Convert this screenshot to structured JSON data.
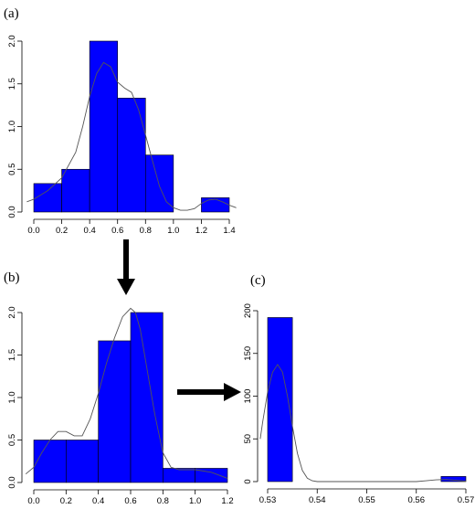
{
  "colors": {
    "bar": "#0000ff",
    "density": "#555555",
    "arrow": "#000000"
  },
  "chart_data": [
    {
      "id": "a",
      "type": "bar",
      "panel_label": "(a)",
      "bin_edges": [
        0.0,
        0.2,
        0.4,
        0.6,
        0.8,
        1.0,
        1.2,
        1.4
      ],
      "values": [
        0.333,
        0.5,
        2.0,
        1.333,
        0.667,
        0.0,
        0.167
      ],
      "xlim": [
        0.0,
        1.4
      ],
      "ylim": [
        0,
        2.0
      ],
      "xticks": [
        "0.0",
        "0.2",
        "0.4",
        "0.6",
        "0.8",
        "1.0",
        "1.2",
        "1.4"
      ],
      "yticks": [
        "0.0",
        "0.5",
        "1.0",
        "1.5",
        "2.0"
      ],
      "density": {
        "x": [
          -0.05,
          0.0,
          0.1,
          0.2,
          0.3,
          0.35,
          0.4,
          0.45,
          0.5,
          0.55,
          0.6,
          0.65,
          0.7,
          0.75,
          0.8,
          0.85,
          0.9,
          0.95,
          1.0,
          1.05,
          1.1,
          1.15,
          1.2,
          1.25,
          1.3,
          1.35,
          1.4,
          1.45
        ],
        "y": [
          0.12,
          0.15,
          0.25,
          0.4,
          0.7,
          1.0,
          1.35,
          1.62,
          1.75,
          1.7,
          1.52,
          1.45,
          1.4,
          1.2,
          0.9,
          0.6,
          0.3,
          0.12,
          0.05,
          0.02,
          0.02,
          0.04,
          0.1,
          0.14,
          0.15,
          0.12,
          0.08,
          0.05
        ]
      }
    },
    {
      "id": "b",
      "type": "bar",
      "panel_label": "(b)",
      "bin_edges": [
        0.0,
        0.2,
        0.4,
        0.6,
        0.8,
        1.0,
        1.2
      ],
      "values": [
        0.5,
        0.5,
        1.667,
        2.0,
        0.167,
        0.167
      ],
      "xlim": [
        0.0,
        1.2
      ],
      "ylim": [
        0,
        2.0
      ],
      "xticks": [
        "0.0",
        "0.2",
        "0.4",
        "0.6",
        "0.8",
        "1.0",
        "1.2"
      ],
      "yticks": [
        "0.0",
        "0.5",
        "1.0",
        "1.5",
        "2.0"
      ],
      "density": {
        "x": [
          -0.05,
          0.0,
          0.05,
          0.1,
          0.15,
          0.2,
          0.25,
          0.3,
          0.35,
          0.4,
          0.45,
          0.5,
          0.55,
          0.6,
          0.63,
          0.66,
          0.7,
          0.75,
          0.8,
          0.85,
          0.9,
          0.95,
          1.0,
          1.1,
          1.2
        ],
        "y": [
          0.1,
          0.18,
          0.35,
          0.5,
          0.6,
          0.6,
          0.55,
          0.55,
          0.75,
          1.05,
          1.4,
          1.7,
          1.95,
          2.05,
          2.0,
          1.8,
          1.35,
          0.8,
          0.35,
          0.18,
          0.15,
          0.15,
          0.15,
          0.12,
          0.05
        ]
      }
    },
    {
      "id": "c",
      "type": "bar",
      "panel_label": "(c)",
      "bin_edges": [
        0.53,
        0.535,
        0.54,
        0.545,
        0.55,
        0.555,
        0.56,
        0.565,
        0.57
      ],
      "values": [
        192,
        0,
        0,
        0,
        0,
        0,
        0,
        6
      ],
      "xlim": [
        0.53,
        0.57
      ],
      "ylim": [
        0,
        200
      ],
      "xticks": [
        "0.53",
        "0.54",
        "0.55",
        "0.56",
        "0.57"
      ],
      "yticks": [
        "0",
        "50",
        "100",
        "150",
        "200"
      ],
      "density": {
        "x": [
          0.5285,
          0.529,
          0.53,
          0.531,
          0.532,
          0.533,
          0.534,
          0.535,
          0.536,
          0.537,
          0.538,
          0.539,
          0.54,
          0.545,
          0.55,
          0.555,
          0.56,
          0.562,
          0.564,
          0.566,
          0.568,
          0.57
        ],
        "y": [
          50,
          70,
          105,
          128,
          137,
          128,
          100,
          65,
          33,
          13,
          4,
          1,
          0,
          0,
          0,
          0,
          0,
          1,
          2,
          2.5,
          1.5,
          0.5
        ]
      }
    }
  ]
}
